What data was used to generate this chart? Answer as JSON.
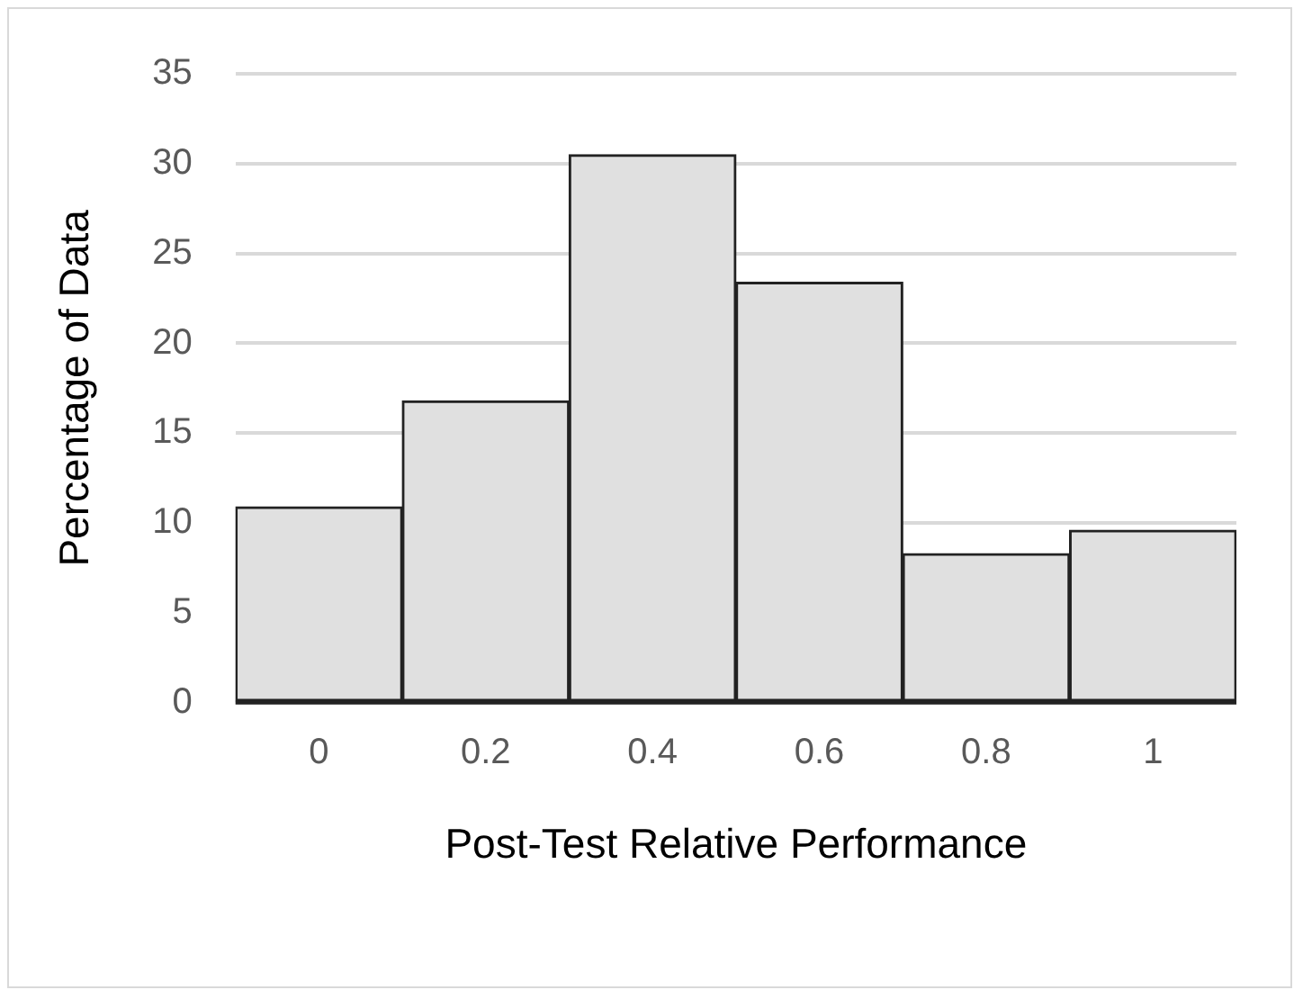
{
  "chart_data": {
    "type": "bar",
    "xlabel": "Post-Test Relative Performance",
    "ylabel": "Percentage of Data",
    "categories": [
      "0",
      "0.2",
      "0.4",
      "0.6",
      "0.8",
      "1"
    ],
    "values": [
      10.9,
      16.8,
      30.5,
      23.4,
      8.3,
      9.6
    ],
    "color": "#e0e0e0",
    "ylim": [
      0,
      35
    ],
    "yticks": [
      0,
      5,
      10,
      15,
      20,
      25,
      30,
      35
    ],
    "grid": "y",
    "legend": false
  }
}
